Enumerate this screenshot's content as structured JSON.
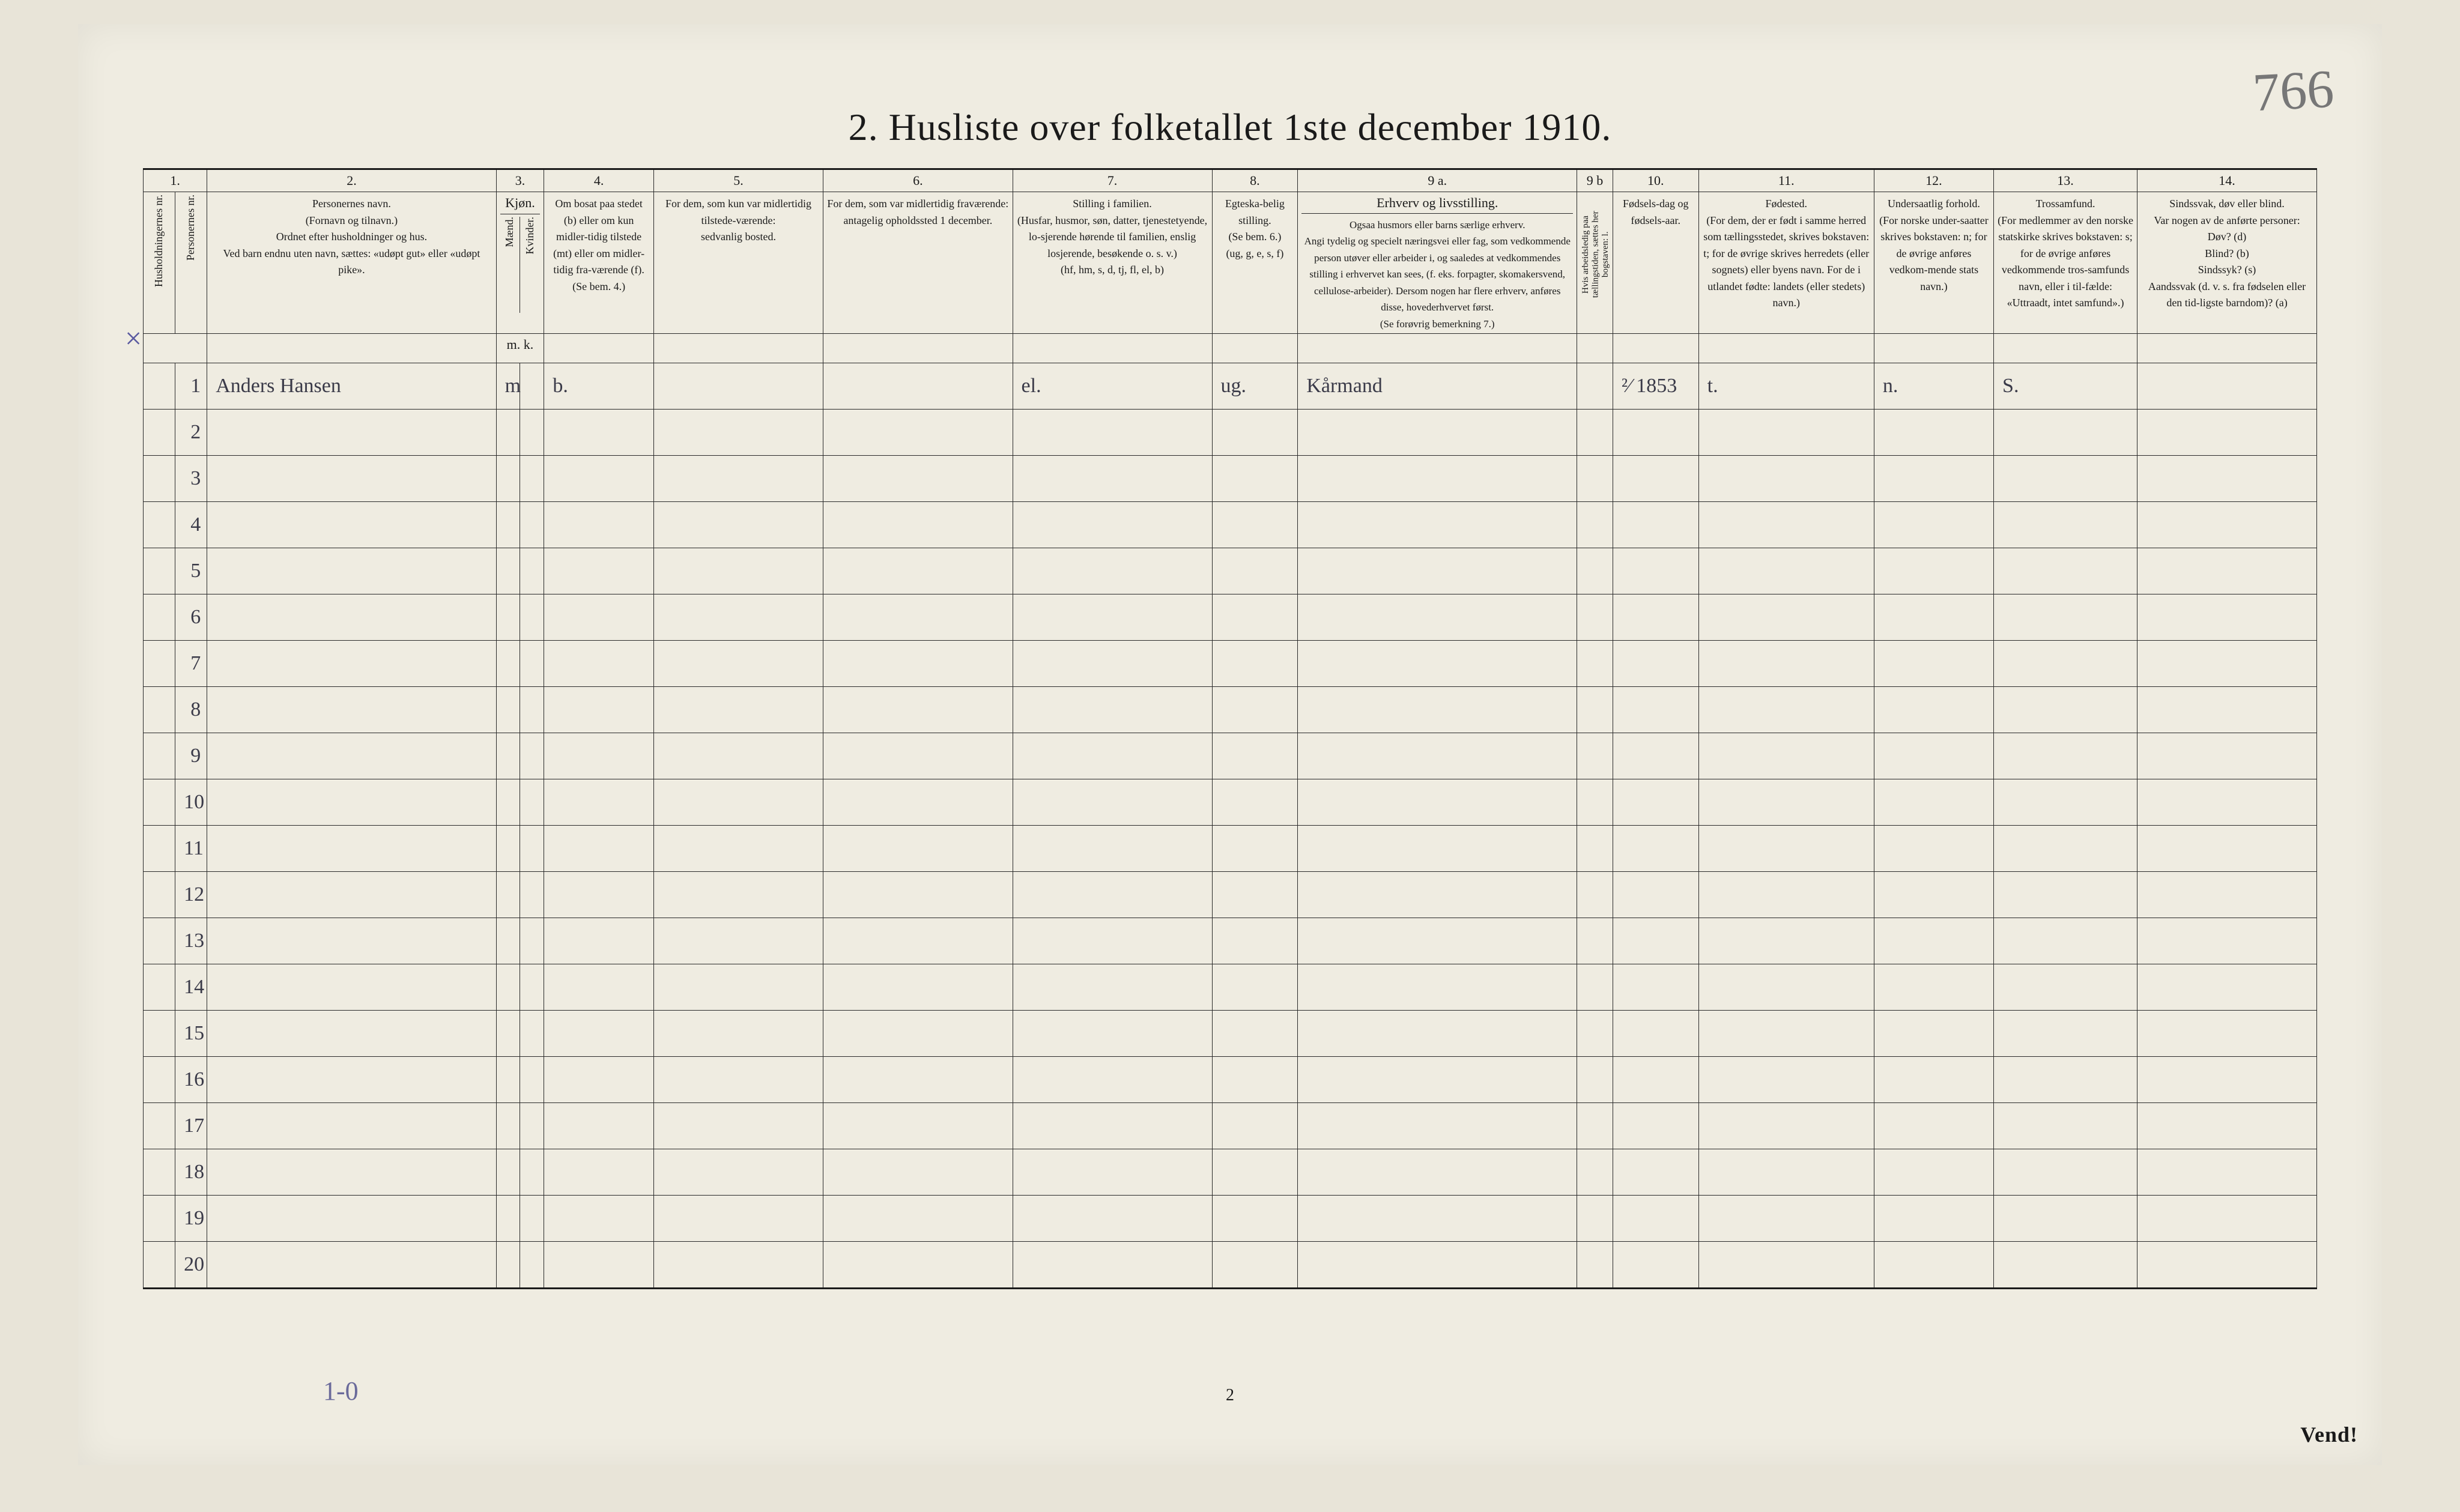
{
  "page": {
    "title": "2.  Husliste over folketallet 1ste december 1910.",
    "handwritten_corner": "766",
    "bottom_page_number": "2",
    "vend": "Vend!",
    "footnote_handwritten": "1-0",
    "x_margin_mark": "×1",
    "background_color": "#efece1",
    "ink_color": "#1a1a1a",
    "handwriting_color": "#3a3a48"
  },
  "columns": {
    "numbers": [
      "1.",
      "2.",
      "3.",
      "4.",
      "5.",
      "6.",
      "7.",
      "8.",
      "9 a.",
      "9 b",
      "10.",
      "11.",
      "12.",
      "13.",
      "14."
    ],
    "widths_pct": [
      1.6,
      1.6,
      14.5,
      1.2,
      1.2,
      5.5,
      8.5,
      9.5,
      10.0,
      4.3,
      14.0,
      1.8,
      4.3,
      8.8,
      6.0,
      7.2
    ],
    "col1a": "Husholdningernes nr.",
    "col1b": "Personernes nr.",
    "col2": "Personernes navn.\n(Fornavn og tilnavn.)\nOrdnet efter husholdninger og hus.\nVed barn endnu uten navn, sættes: «udøpt gut» eller «udøpt pike».",
    "col3_top": "Kjøn.",
    "col3_m": "Mænd.",
    "col3_k": "Kvinder.",
    "col3_mk": "m.  k.",
    "col4": "Om bosat paa stedet (b) eller om kun midler-tidig tilstede (mt) eller om midler-tidig fra-værende (f).\n(Se bem. 4.)",
    "col5": "For dem, som kun var midlertidig tilstede-værende:\nsedvanlig bosted.",
    "col6": "For dem, som var midlertidig fraværende:\nantagelig opholdssted 1 december.",
    "col7": "Stilling i familien.\n(Husfar, husmor, søn, datter, tjenestetyende, lo-sjerende hørende til familien, enslig losjerende, besøkende o. s. v.)\n(hf, hm, s, d, tj, fl, el, b)",
    "col8": "Egteska-belig stilling.\n(Se bem. 6.)\n(ug, g, e, s, f)",
    "col9a_top": "Erhverv og livsstilling.",
    "col9a": "Ogsaa husmors eller barns særlige erhverv.\nAngi tydelig og specielt næringsvei eller fag, som vedkommende person utøver eller arbeider i, og saaledes at vedkommendes stilling i erhvervet kan sees, (f. eks. forpagter, skomakersvend, cellulose-arbeider). Dersom nogen har flere erhverv, anføres disse, hovederhvervet først.\n(Se forøvrig bemerkning 7.)",
    "col9b": "Hvis arbeidsledig paa tællingstiden, sættes her bogstaven: l.",
    "col10": "Fødsels-dag og fødsels-aar.",
    "col11": "Fødested.\n(For dem, der er født i samme herred som tællingsstedet, skrives bokstaven: t; for de øvrige skrives herredets (eller sognets) eller byens navn. For de i utlandet fødte: landets (eller stedets) navn.)",
    "col12": "Undersaatlig forhold.\n(For norske under-saatter skrives bokstaven: n; for de øvrige anføres vedkom-mende stats navn.)",
    "col13": "Trossamfund.\n(For medlemmer av den norske statskirke skrives bokstaven: s; for de øvrige anføres vedkommende tros-samfunds navn, eller i til-fælde: «Uttraadt, intet samfund».)",
    "col14": "Sindssvak, døv eller blind.\nVar nogen av de anførte personer:\nDøv?        (d)\nBlind?       (b)\nSindssyk?  (s)\nAandssvak (d. v. s. fra fødselen eller den tid-ligste barndom)?  (a)"
  },
  "rows": [
    {
      "n": "1",
      "name": "Anders Hansen",
      "sex_m": "m",
      "sex_k": "",
      "bosat": "b.",
      "col5": "",
      "col6": "",
      "stilling": "el.",
      "egte": "ug.",
      "erhverv": "Kårmand",
      "col9b": "",
      "fodsel": "²⁄  1853",
      "fodested": "t.",
      "undersaat": "n.",
      "tros": "S.",
      "col14": ""
    },
    {
      "n": "2"
    },
    {
      "n": "3"
    },
    {
      "n": "4"
    },
    {
      "n": "5"
    },
    {
      "n": "6"
    },
    {
      "n": "7"
    },
    {
      "n": "8"
    },
    {
      "n": "9"
    },
    {
      "n": "10"
    },
    {
      "n": "11"
    },
    {
      "n": "12"
    },
    {
      "n": "13"
    },
    {
      "n": "14"
    },
    {
      "n": "15"
    },
    {
      "n": "16"
    },
    {
      "n": "17"
    },
    {
      "n": "18"
    },
    {
      "n": "19"
    },
    {
      "n": "20"
    }
  ]
}
